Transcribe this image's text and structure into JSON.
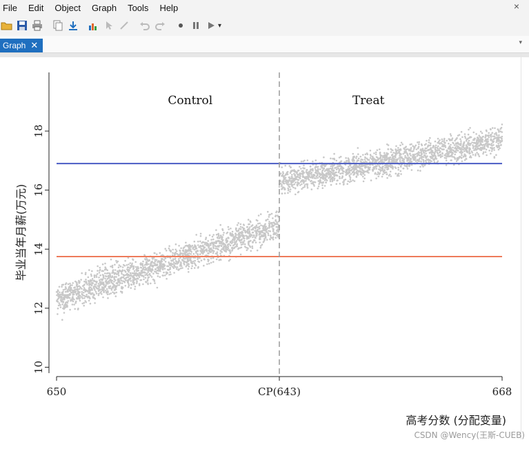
{
  "menubar": {
    "items": [
      "File",
      "Edit",
      "Object",
      "Graph",
      "Tools",
      "Help"
    ]
  },
  "toolbar": {
    "icons": [
      "open-folder-icon",
      "save-icon",
      "print-icon",
      "copy-icon",
      "export-icon",
      "chart-edit-icon",
      "pointer-icon",
      "grid-edit-icon",
      "undo-icon",
      "redo-icon",
      "record-icon",
      "pause-icon",
      "play-icon"
    ]
  },
  "tabs": [
    {
      "label": "Graph"
    }
  ],
  "colors": {
    "tab_active": "#1f6fbf",
    "scatter": "#c8c8c8",
    "fit_treat": "#4a5bc4",
    "fit_control": "#ee7a5a",
    "cutoff": "#9a9a9a"
  },
  "chart_data": {
    "type": "scatter",
    "title": "",
    "xlabel": "高考分数 (分配变量)",
    "ylabel": "毕业当年月薪(万元)",
    "xtick_labels": [
      "650",
      "CP(643)",
      "668"
    ],
    "yticks": [
      10,
      12,
      14,
      16,
      18
    ],
    "ylim": [
      9.8,
      19.8
    ],
    "cutoff_label": "CP(643)",
    "region_labels": [
      "Control",
      "Treat"
    ],
    "x_domain": [
      0,
      1
    ],
    "cutoff_position": 0.5,
    "grid": false,
    "series": [
      {
        "kind": "points",
        "n_points": 3600,
        "control_trend": {
          "x": [
            0,
            0.5
          ],
          "y": [
            12.3,
            14.8
          ],
          "spread": 0.9
        },
        "treat_trend": {
          "x": [
            0.5,
            1
          ],
          "y": [
            16.3,
            17.7
          ],
          "spread": 0.8
        }
      },
      {
        "kind": "hline",
        "y": 16.9,
        "x": [
          0,
          1
        ]
      },
      {
        "kind": "hline",
        "y": 13.75,
        "x": [
          0,
          1
        ]
      }
    ]
  },
  "watermark": "CSDN @Wency(王斯-CUEB)"
}
